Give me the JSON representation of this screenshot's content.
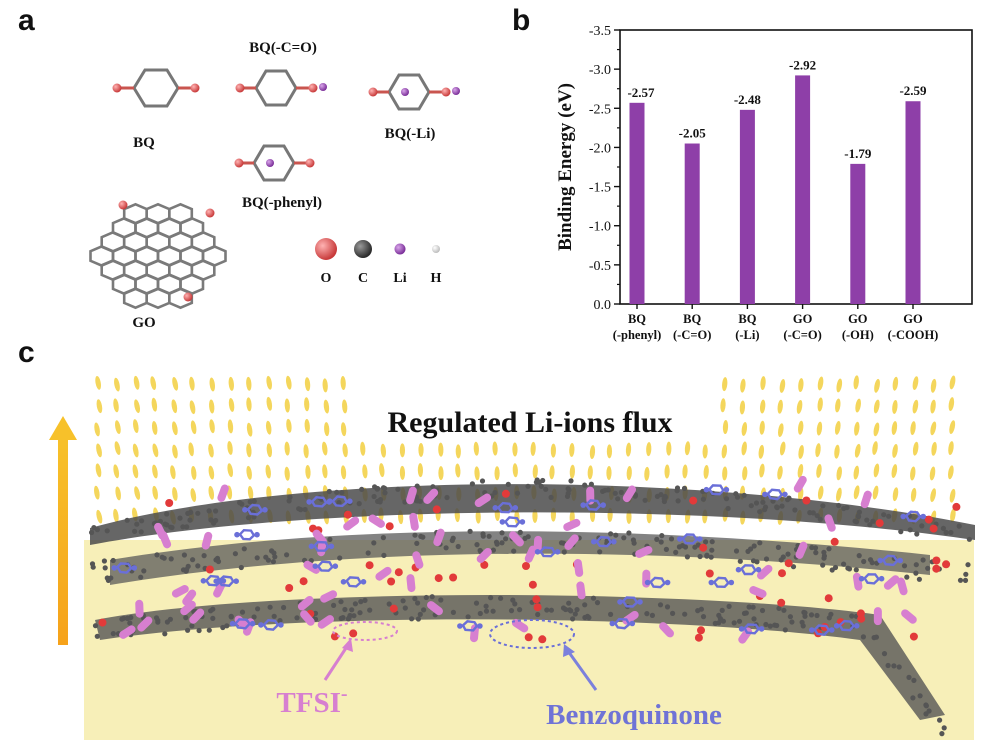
{
  "panels": {
    "a": "a",
    "b": "b",
    "c": "c"
  },
  "panel_a": {
    "molecules": {
      "bq": "BQ",
      "bq_co": "BQ(-C=O)",
      "bq_li": "BQ(-Li)",
      "bq_phenyl": "BQ(-phenyl)",
      "go": "GO"
    },
    "legend": [
      {
        "label": "O",
        "color": "#e06666"
      },
      {
        "label": "C",
        "color": "#4a4a4a"
      },
      {
        "label": "Li",
        "color": "#9b59b6"
      },
      {
        "label": "H",
        "color": "#e8e8e8"
      }
    ]
  },
  "chart_data": {
    "type": "bar",
    "categories": [
      [
        "BQ",
        "(-phenyl)"
      ],
      [
        "BQ",
        "(-C=O)"
      ],
      [
        "BQ",
        "(-Li)"
      ],
      [
        "GO",
        "(-C=O)"
      ],
      [
        "GO",
        "(-OH)"
      ],
      [
        "GO",
        "(-COOH)"
      ]
    ],
    "values": [
      -2.57,
      -2.05,
      -2.48,
      -2.92,
      -1.79,
      -2.59
    ],
    "value_labels": [
      "-2.57",
      "-2.05",
      "-2.48",
      "-2.92",
      "-1.79",
      "-2.59"
    ],
    "ylabel": "Binding Energy (eV)",
    "ylim": [
      0.0,
      -3.5
    ],
    "yticks": [
      "-3.5",
      "-3.0",
      "-2.5",
      "-2.0",
      "-1.5",
      "-1.0",
      "-0.5",
      "0.0"
    ],
    "ytick_values": [
      -3.5,
      -3.0,
      -2.5,
      -2.0,
      -1.5,
      -1.0,
      -0.5,
      0.0
    ],
    "bar_color": "#8e3fa8",
    "grid": false
  },
  "panel_c": {
    "title": "Regulated Li-ions flux",
    "tfsi_label": "TFSI",
    "tfsi_sup": "-",
    "bq_label": "Benzoquinone",
    "colors": {
      "substrate": "#f7efb8",
      "ion": "#f3d24a",
      "arrow": "#f3b31b",
      "carbon": "#555555",
      "oxygen": "#e23a3a",
      "tfsi": "#d77fd0",
      "bq": "#6a6fd8"
    }
  }
}
